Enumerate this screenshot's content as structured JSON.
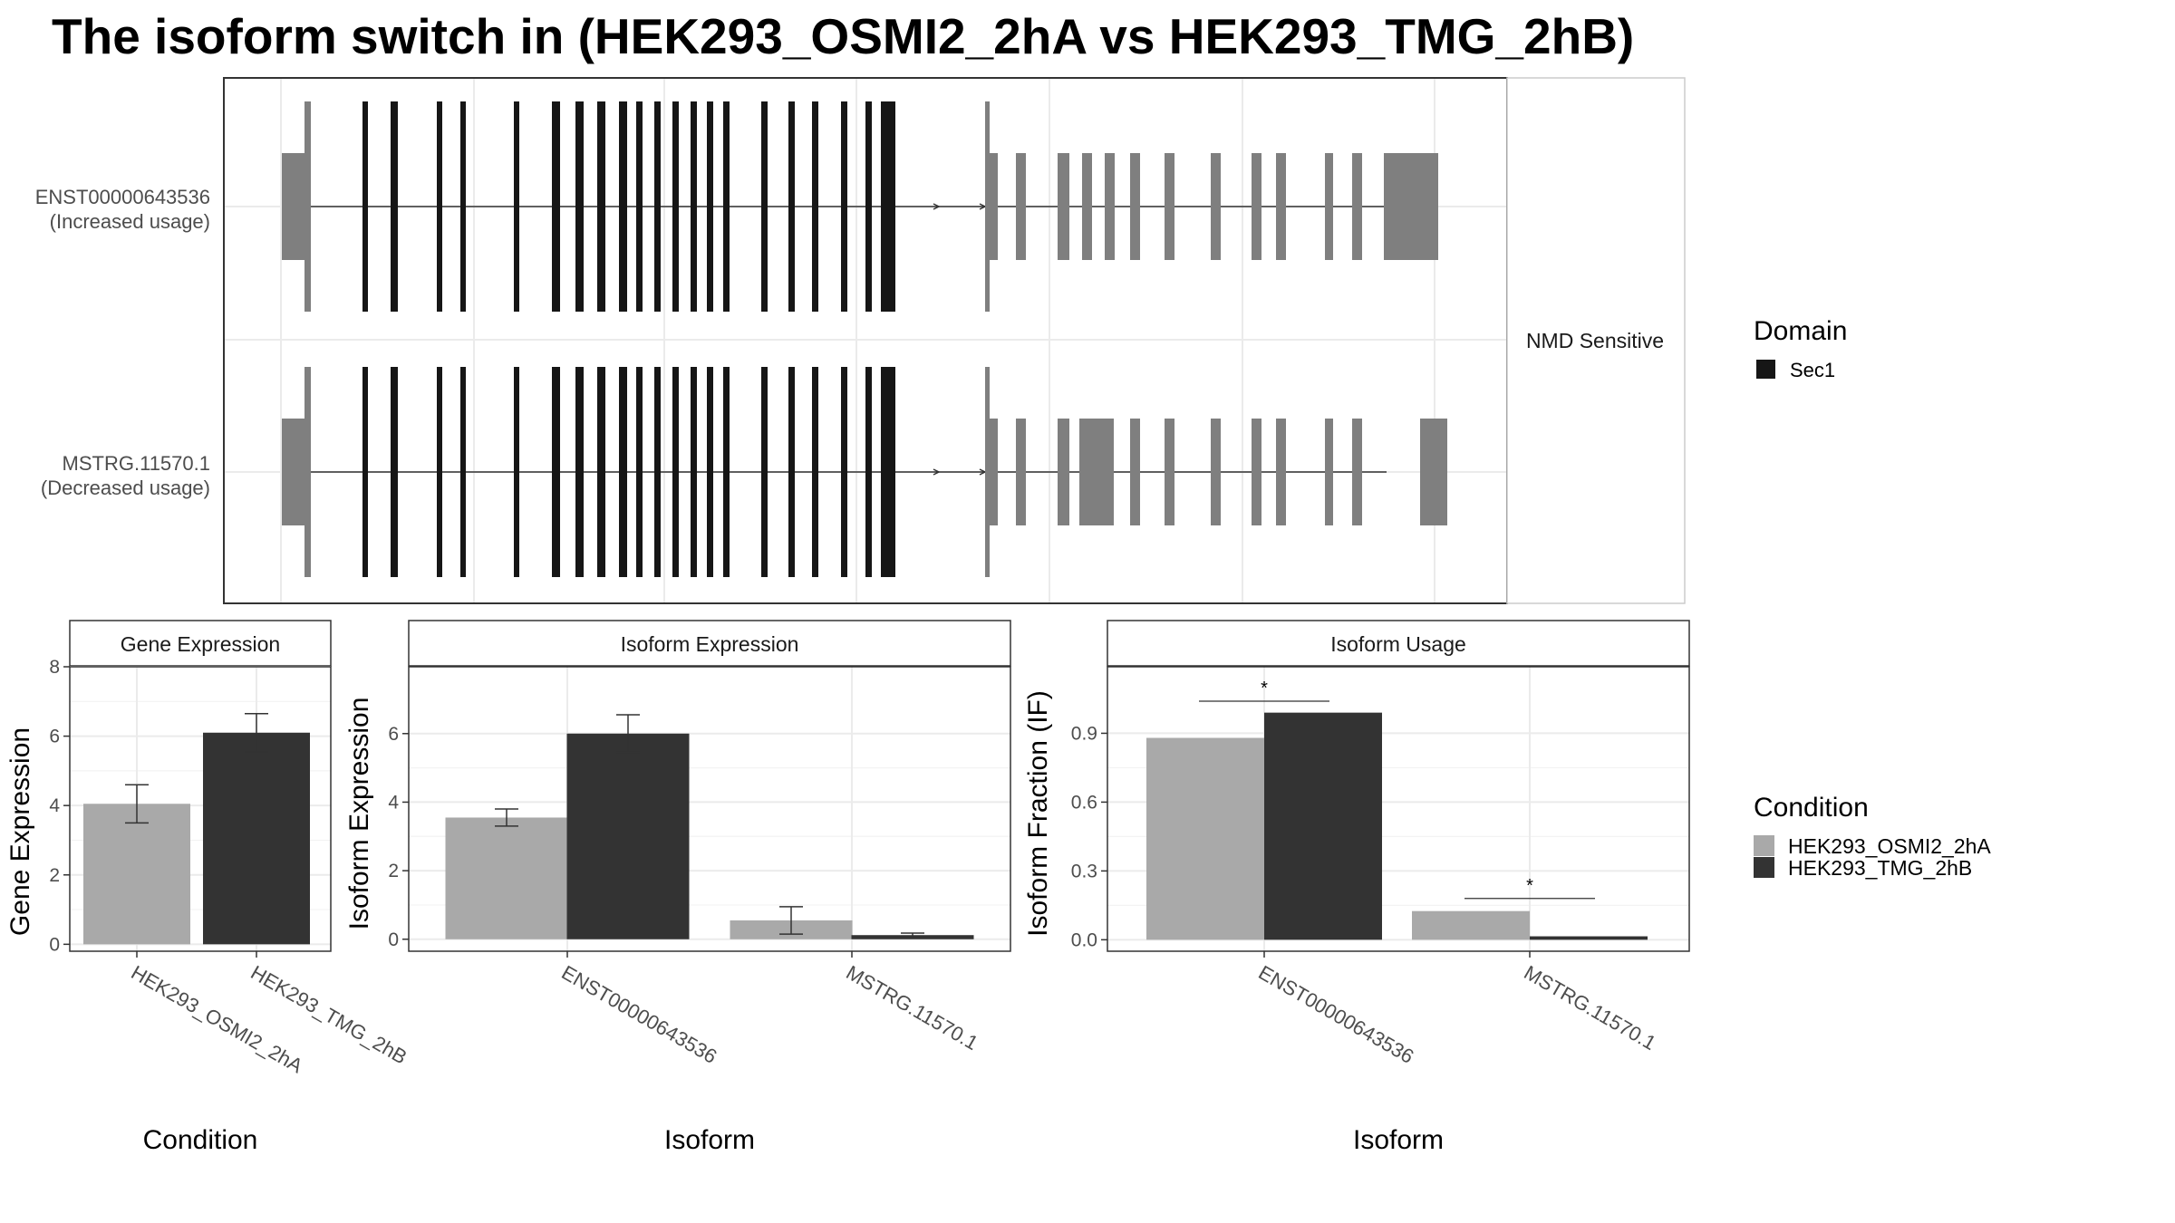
{
  "title": "The isoform switch in  (HEK293_OSMI2_2hA vs HEK293_TMG_2hB)",
  "colors": {
    "condition_a": "#a9a9a9",
    "condition_b": "#333333",
    "domain": "#161616",
    "exon": "#7f7f7f",
    "grid": "#ebebeb",
    "panel_border": "#333333"
  },
  "transcript_panel": {
    "facet_label": "NMD Sensitive",
    "transcripts": [
      {
        "id": "ENST00000643536",
        "note": "(Increased usage)"
      },
      {
        "id": "MSTRG.11570.1",
        "note": "(Decreased usage)"
      }
    ]
  },
  "legend": {
    "domain": {
      "title": "Domain",
      "items": [
        {
          "label": "Sec1",
          "color": "#161616"
        }
      ]
    },
    "condition": {
      "title": "Condition",
      "items": [
        {
          "label": "HEK293_OSMI2_2hA",
          "color": "#a9a9a9"
        },
        {
          "label": "HEK293_TMG_2hB",
          "color": "#333333"
        }
      ]
    }
  },
  "chart_data": [
    {
      "type": "bar",
      "panel": "Gene Expression",
      "xlabel": "Condition",
      "ylabel": "Gene Expression",
      "categories": [
        "HEK293_OSMI2_2hA",
        "HEK293_TMG_2hB"
      ],
      "series": [
        {
          "values": [
            4.05,
            6.1
          ],
          "error_low": [
            3.5,
            5.55
          ],
          "error_high": [
            4.6,
            6.65
          ]
        }
      ],
      "ylim": [
        -0.2,
        8.0
      ],
      "yticks": [
        0,
        2,
        4,
        6,
        8
      ]
    },
    {
      "type": "bar",
      "panel": "Isoform Expression",
      "xlabel": "Isoform",
      "ylabel": "Isoform Expression",
      "categories": [
        "ENST00000643536",
        "MSTRG.11570.1"
      ],
      "series": [
        {
          "name": "HEK293_OSMI2_2hA",
          "values": [
            3.55,
            0.55
          ],
          "error_low": [
            3.3,
            0.15
          ],
          "error_high": [
            3.8,
            0.95
          ]
        },
        {
          "name": "HEK293_TMG_2hB",
          "values": [
            6.0,
            0.12
          ],
          "error_low": [
            5.45,
            0.08
          ],
          "error_high": [
            6.55,
            0.18
          ]
        }
      ],
      "ylim": [
        -0.35,
        7.95
      ],
      "yticks": [
        0,
        2,
        4,
        6
      ]
    },
    {
      "type": "bar",
      "panel": "Isoform Usage",
      "xlabel": "Isoform",
      "ylabel": "Isoform Fraction (IF)",
      "categories": [
        "ENST00000643536",
        "MSTRG.11570.1"
      ],
      "series": [
        {
          "name": "HEK293_OSMI2_2hA",
          "values": [
            0.88,
            0.125
          ]
        },
        {
          "name": "HEK293_TMG_2hB",
          "values": [
            0.99,
            0.015
          ]
        }
      ],
      "significance": [
        {
          "label": "*",
          "y": 1.04
        },
        {
          "label": "*",
          "y": 0.18
        }
      ],
      "ylim": [
        -0.05,
        1.19
      ],
      "yticks": [
        0.0,
        0.3,
        0.6,
        0.9
      ],
      "ytick_labels": [
        "0.0",
        "0.3",
        "0.6",
        "0.9"
      ]
    }
  ]
}
